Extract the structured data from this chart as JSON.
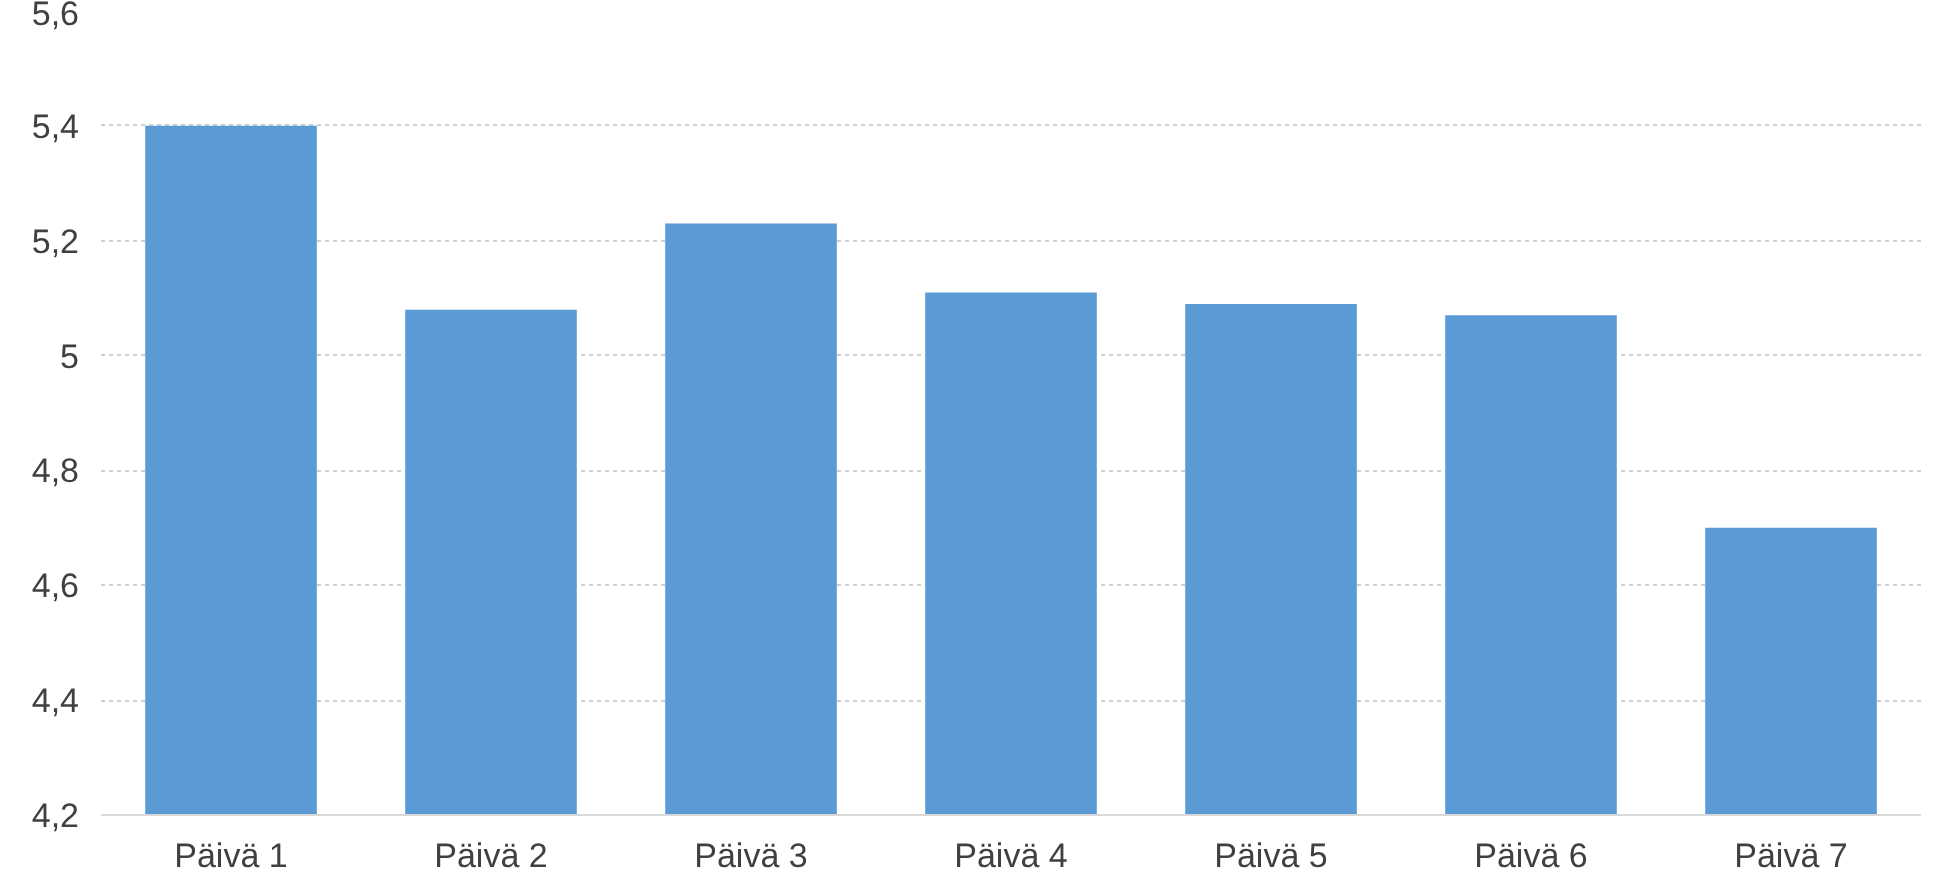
{
  "chart_data": {
    "type": "bar",
    "categories": [
      "Päivä 1",
      "Päivä 2",
      "Päivä 3",
      "Päivä 4",
      "Päivä 5",
      "Päivä 6",
      "Päivä 7"
    ],
    "values": [
      5.4,
      5.08,
      5.23,
      5.11,
      5.09,
      5.07,
      4.7
    ],
    "color": "#5b9bd5",
    "ylim": [
      4.2,
      5.6
    ],
    "yticks": [
      {
        "value": 4.2,
        "label": "4,2"
      },
      {
        "value": 4.4,
        "label": "4,4"
      },
      {
        "value": 4.6,
        "label": "4,6"
      },
      {
        "value": 4.8,
        "label": "4,8"
      },
      5,
      {
        "value": 5.2,
        "label": "5,2"
      },
      {
        "value": 5.4,
        "label": "5,4"
      },
      {
        "value": 5.6,
        "label": "5,6"
      }
    ],
    "grid": "y"
  }
}
